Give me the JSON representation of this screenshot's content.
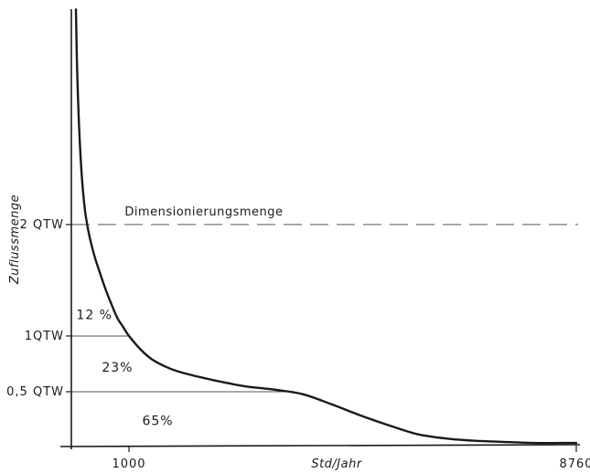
{
  "chart_data": {
    "type": "line",
    "title": "",
    "xlabel": "Std/Jahr",
    "ylabel": "Zuflussmenge",
    "xlim": [
      0,
      8760
    ],
    "ylim": [
      0,
      3.9
    ],
    "x_ticks": [
      {
        "value": 1000,
        "label": "1000"
      },
      {
        "value": 8760,
        "label": "8760"
      }
    ],
    "y_ticks": [
      {
        "value": 0.5,
        "label": "0,5 QTW"
      },
      {
        "value": 1.0,
        "label": "1QTW"
      },
      {
        "value": 2.0,
        "label": "2 QTW"
      }
    ],
    "series": [
      {
        "name": "",
        "x": [
          80,
          100,
          150,
          220,
          300,
          400,
          500,
          600,
          700,
          800,
          900,
          1000,
          1200,
          1400,
          1700,
          2000,
          2500,
          3000,
          3500,
          4000,
          4500,
          5000,
          5500,
          6000,
          6500,
          7000,
          7500,
          8000,
          8500,
          8760
        ],
        "y": [
          3.93,
          3.4,
          2.7,
          2.2,
          1.93,
          1.72,
          1.56,
          1.41,
          1.28,
          1.16,
          1.08,
          1.0,
          0.88,
          0.79,
          0.71,
          0.66,
          0.6,
          0.55,
          0.52,
          0.48,
          0.39,
          0.29,
          0.2,
          0.12,
          0.08,
          0.06,
          0.05,
          0.04,
          0.04,
          0.04
        ]
      }
    ],
    "reference_lines": [
      {
        "y": 2.0,
        "style": "dashed",
        "label": "Dimensionierungsmenge"
      },
      {
        "y": 1.0,
        "style": "solid",
        "label": ""
      },
      {
        "y": 0.5,
        "style": "solid",
        "label": ""
      }
    ],
    "region_labels": [
      {
        "text": "12 %",
        "x": 400,
        "y": 1.15
      },
      {
        "text": "23%",
        "x": 800,
        "y": 0.68
      },
      {
        "text": "65%",
        "x": 1500,
        "y": 0.2
      }
    ],
    "grid": false,
    "legend": "none",
    "colors": {
      "ink": "#1a1a1a",
      "rule": "#555555"
    }
  }
}
